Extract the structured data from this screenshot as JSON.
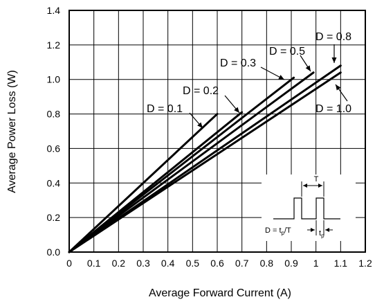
{
  "chart_data": {
    "type": "line",
    "title": "",
    "xlabel": "Average Forward Current (A)",
    "ylabel": "Average Power Loss (W)",
    "xlim": [
      0,
      1.2
    ],
    "ylim": [
      0,
      1.4
    ],
    "x_ticks": [
      "0",
      "0.1",
      "0.2",
      "0.3",
      "0.4",
      "0.5",
      "0.6",
      "0.7",
      "0.8",
      "0.9",
      "1",
      "1.1",
      "1.2"
    ],
    "y_ticks": [
      "0.0",
      "0.2",
      "0.4",
      "0.6",
      "0.8",
      "1.0",
      "1.2",
      "1.4"
    ],
    "grid": true,
    "series": [
      {
        "name": "D = 0.1",
        "x": [
          0,
          0.6
        ],
        "y": [
          0,
          0.8
        ]
      },
      {
        "name": "D = 0.2",
        "x": [
          0,
          0.7
        ],
        "y": [
          0,
          0.81
        ]
      },
      {
        "name": "D = 0.3",
        "x": [
          0,
          0.91
        ],
        "y": [
          0,
          1.01
        ]
      },
      {
        "name": "D = 0.5",
        "x": [
          0,
          0.99
        ],
        "y": [
          0,
          1.04
        ]
      },
      {
        "name": "D = 0.8",
        "x": [
          0,
          1.1
        ],
        "y": [
          0,
          1.08
        ]
      },
      {
        "name": "D = 1.0",
        "x": [
          0,
          1.1
        ],
        "y": [
          0,
          1.04
        ]
      }
    ],
    "inset": {
      "period_label": "T",
      "duty_label": "D = t",
      "duty_sub": "p",
      "duty_suffix": "/T",
      "pulse_label": "t",
      "pulse_sub": "p"
    }
  }
}
